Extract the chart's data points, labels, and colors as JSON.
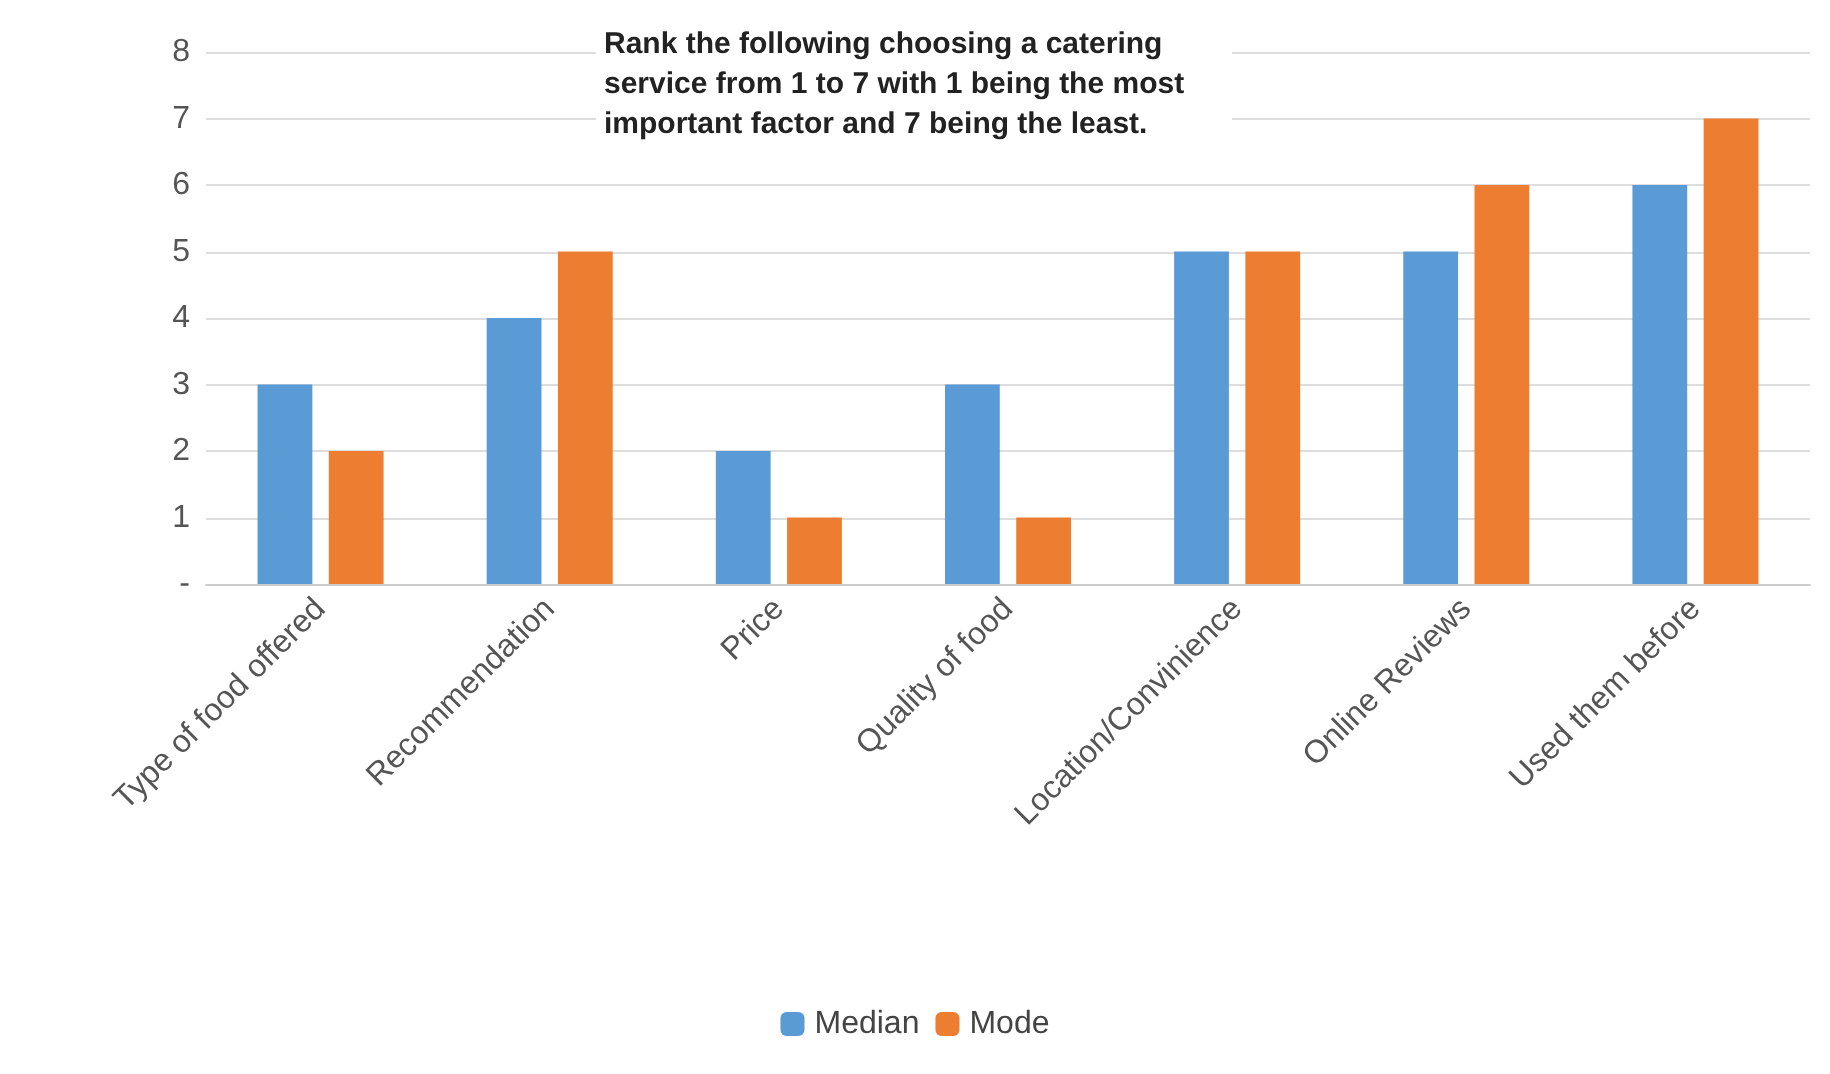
{
  "chart_data": {
    "type": "bar",
    "title": "Rank the following choosing a catering service from 1 to 7 with 1 being the most important factor and 7 being the least.",
    "categories": [
      "Type of food offered",
      "Recommendation",
      "Price",
      "Quality of food",
      "Location/Convinience",
      "Online Reviews",
      "Used them before"
    ],
    "series": [
      {
        "name": "Median",
        "color": "#5b9bd5",
        "values": [
          3,
          4,
          2,
          3,
          5,
          5,
          6
        ]
      },
      {
        "name": "Mode",
        "color": "#ed7d31",
        "values": [
          2,
          5,
          1,
          1,
          5,
          6,
          7
        ]
      }
    ],
    "ylim": [
      0,
      8
    ],
    "yticks": [
      {
        "value": 0,
        "label": "-"
      },
      1,
      2,
      3,
      4,
      5,
      6,
      7,
      8
    ],
    "grid": "y",
    "legend": "bottom"
  }
}
